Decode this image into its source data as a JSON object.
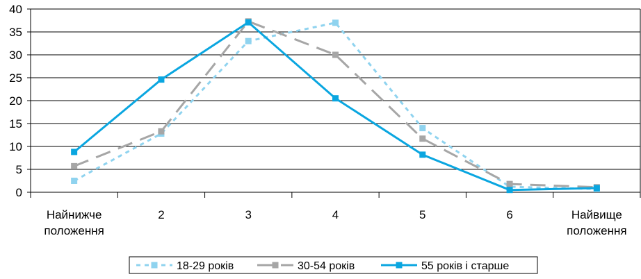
{
  "chart_data": {
    "type": "line",
    "categories": [
      "Найнижче\nположення",
      "2",
      "3",
      "4",
      "5",
      "6",
      "Найвище\nположення"
    ],
    "ylim": [
      0,
      40
    ],
    "y_ticks": [
      0,
      5,
      10,
      15,
      20,
      25,
      30,
      35,
      40
    ],
    "grid": "horizontal",
    "legend_position": "bottom",
    "series": [
      {
        "name": "18-29 років",
        "values": [
          2.5,
          12.8,
          33,
          37,
          14,
          1.2,
          0.7
        ],
        "color": "#8fd3ef",
        "style": "dotted"
      },
      {
        "name": "30-54 років",
        "values": [
          5.7,
          13.3,
          37.3,
          30,
          11.7,
          1.8,
          1.1
        ],
        "color": "#a6a6a6",
        "style": "dashed"
      },
      {
        "name": "55 років і старше",
        "values": [
          8.8,
          24.6,
          37.1,
          20.5,
          8.2,
          0.5,
          0.9
        ],
        "color": "#0aa6e0",
        "style": "solid"
      }
    ]
  }
}
